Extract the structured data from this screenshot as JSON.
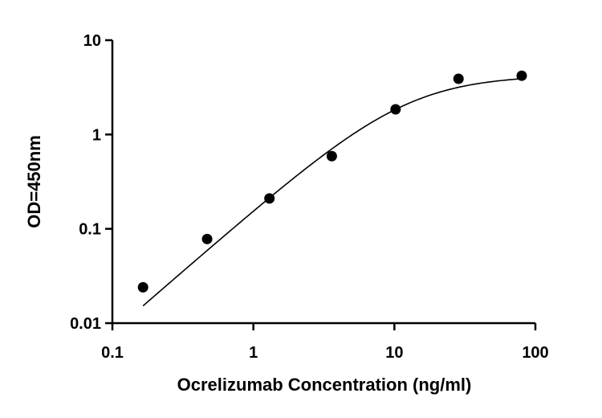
{
  "chart_data": {
    "type": "scatter",
    "xlabel": "Ocrelizumab Concentration (ng/ml)",
    "ylabel": "OD=450nm",
    "xscale": "log",
    "yscale": "log",
    "xlim": [
      0.1,
      100
    ],
    "ylim": [
      0.01,
      10
    ],
    "x_ticks": [
      0.1,
      1,
      10,
      100
    ],
    "x_tick_labels": [
      "0.1",
      "1",
      "10",
      "100"
    ],
    "y_ticks": [
      0.01,
      0.1,
      1,
      10
    ],
    "y_tick_labels": [
      "0.01",
      "0.1",
      "1",
      "10"
    ],
    "grid": false,
    "legend": "none",
    "marker_color": "#000000",
    "series": [
      {
        "x": [
          0.165,
          0.47,
          1.3,
          3.6,
          10.2,
          28.5,
          80
        ],
        "y": [
          0.024,
          0.078,
          0.21,
          0.59,
          1.85,
          3.9,
          4.2
        ]
      }
    ],
    "fit_curve": {
      "model": "4PL",
      "bottom": 0.0,
      "top": 4.25,
      "ec50": 12.5,
      "hill": 1.3,
      "x_range": [
        0.165,
        80
      ]
    }
  }
}
